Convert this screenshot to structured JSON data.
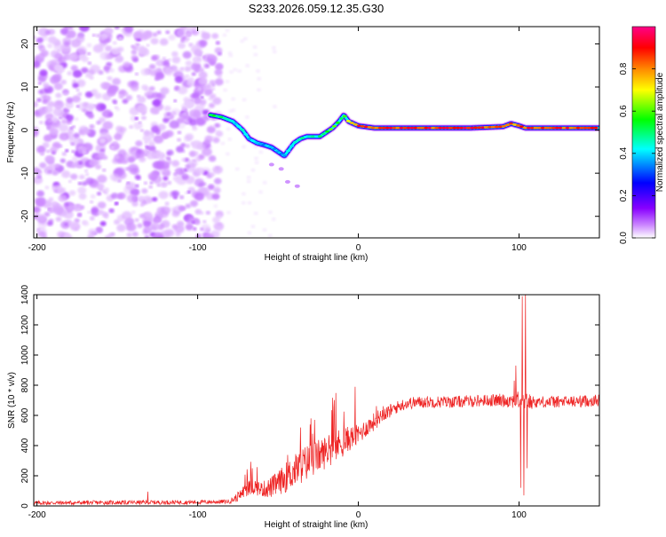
{
  "chart_data": [
    {
      "type": "heatmap",
      "title": "S233.2026.059.12.35.G30",
      "xlabel": "Height of straight line (km)",
      "ylabel": "Frequency (Hz)",
      "xlim": [
        -202,
        150
      ],
      "ylim": [
        -25,
        24
      ],
      "xticks": [
        -200,
        -100,
        0,
        100
      ],
      "yticks": [
        -20,
        -10,
        0,
        10,
        20
      ],
      "colorbar": {
        "label": "Normalized spectral amplitude",
        "range": [
          0,
          1
        ],
        "ticks": [
          0.0,
          0.2,
          0.4,
          0.6,
          0.8
        ],
        "tick_labels": [
          "0.0",
          "0.2",
          "0.4",
          "0.6",
          "0.8"
        ],
        "colors": [
          "#ffffff",
          "#cc88ff",
          "#8800ff",
          "#0000ff",
          "#00ffff",
          "#00ff00",
          "#ffff00",
          "#ff8800",
          "#ff0000",
          "#ff0088"
        ]
      },
      "noise_region_x": [
        -202,
        -92
      ],
      "ridge": {
        "x": [
          -92,
          -85,
          -78,
          -72,
          -68,
          -63,
          -58,
          -54,
          -50,
          -46,
          -43,
          -40,
          -36,
          -32,
          -28,
          -24,
          -20,
          -16,
          -12,
          -9,
          -6,
          -3,
          0,
          10,
          30,
          50,
          70,
          90,
          95,
          100,
          104,
          110,
          130,
          150
        ],
        "freq": [
          3.5,
          3,
          2,
          0,
          -2,
          -3,
          -3.5,
          -4,
          -5,
          -6,
          -4.5,
          -3,
          -2,
          -1.5,
          -1.5,
          -1.5,
          -0.5,
          0.5,
          2,
          3.5,
          2,
          1.5,
          1,
          0.5,
          0.5,
          0.5,
          0.5,
          0.8,
          1.5,
          1,
          0.5,
          0.5,
          0.5,
          0.5
        ],
        "amplitude": [
          0.6,
          0.55,
          0.5,
          0.45,
          0.45,
          0.45,
          0.45,
          0.45,
          0.4,
          0.4,
          0.45,
          0.45,
          0.5,
          0.5,
          0.5,
          0.5,
          0.55,
          0.6,
          0.6,
          0.6,
          0.8,
          0.85,
          0.88,
          0.9,
          0.92,
          0.9,
          0.92,
          0.9,
          0.85,
          0.85,
          0.9,
          0.9,
          0.9,
          0.9
        ]
      }
    },
    {
      "type": "line",
      "xlabel": "Height of straight line (km)",
      "ylabel": "SNR (10 * v/v)",
      "xlim": [
        -202,
        150
      ],
      "ylim": [
        0,
        1400
      ],
      "xticks": [
        -200,
        -100,
        0,
        100
      ],
      "yticks": [
        0,
        200,
        400,
        600,
        800,
        1000,
        1200,
        1400
      ],
      "color": "#ee2222",
      "envelope": {
        "x": [
          -202,
          -100,
          -85,
          -80,
          -75,
          -70,
          -65,
          -60,
          -55,
          -50,
          -45,
          -40,
          -35,
          -30,
          -25,
          -20,
          -15,
          -10,
          -5,
          0,
          5,
          10,
          15,
          20,
          25,
          30,
          40,
          60,
          80,
          90,
          95,
          100,
          103,
          106,
          110,
          130,
          150
        ],
        "base": [
          20,
          25,
          28,
          30,
          60,
          110,
          130,
          110,
          120,
          150,
          190,
          230,
          270,
          300,
          330,
          360,
          390,
          420,
          450,
          470,
          520,
          560,
          610,
          630,
          660,
          680,
          690,
          690,
          700,
          700,
          700,
          700,
          700,
          690,
          690,
          690,
          700
        ],
        "noise": [
          14,
          14,
          14,
          14,
          30,
          50,
          55,
          50,
          70,
          80,
          100,
          110,
          120,
          120,
          110,
          110,
          110,
          100,
          80,
          70,
          60,
          60,
          50,
          45,
          40,
          40,
          40,
          40,
          40,
          45,
          50,
          60,
          60,
          55,
          40,
          40,
          40
        ]
      },
      "spikes": [
        {
          "x": -131,
          "y": 95
        },
        {
          "x": -66,
          "y": 250
        },
        {
          "x": -36,
          "y": 520
        },
        {
          "x": -30,
          "y": 540
        },
        {
          "x": -2,
          "y": 790
        },
        {
          "x": 97,
          "y": 830
        },
        {
          "x": 98,
          "y": 930
        },
        {
          "x": 101,
          "y": 120
        },
        {
          "x": 102,
          "y": 1390
        },
        {
          "x": 103,
          "y": 70
        },
        {
          "x": 104,
          "y": 1400
        },
        {
          "x": 105,
          "y": 250
        }
      ]
    }
  ]
}
